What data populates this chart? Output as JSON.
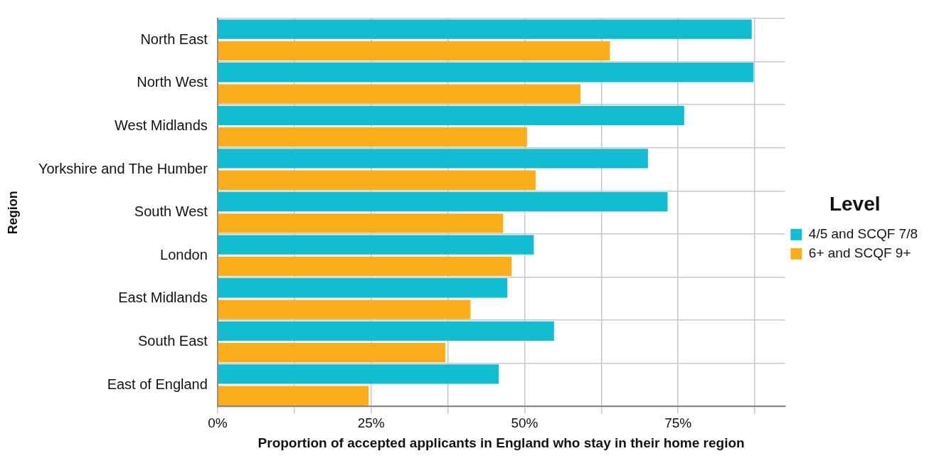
{
  "chart_data": {
    "type": "bar",
    "orientation": "horizontal",
    "xlabel": "Proportion of accepted applicants in England who stay in their home region",
    "ylabel": "Region",
    "legend_title": "Level",
    "categories": [
      "North East",
      "North West",
      "West Midlands",
      "Yorkshire and The Humber",
      "South West",
      "London",
      "East Midlands",
      "South East",
      "East of England"
    ],
    "series": [
      {
        "name": "4/5 and SCQF 7/8",
        "color": "#12bdd1",
        "values": [
          87.0,
          87.3,
          76.0,
          70.1,
          73.3,
          51.5,
          47.2,
          54.8,
          45.8
        ]
      },
      {
        "name": "6+ and SCQF 9+",
        "color": "#fbae1b",
        "values": [
          63.9,
          59.1,
          50.4,
          51.8,
          46.5,
          47.9,
          41.2,
          37.1,
          24.6
        ]
      }
    ],
    "xlim": [
      0,
      92.4
    ],
    "xticks": [
      {
        "value": 0,
        "label": "0%"
      },
      {
        "value": 12.5,
        "label": null
      },
      {
        "value": 25,
        "label": "25%"
      },
      {
        "value": 37.5,
        "label": null
      },
      {
        "value": 50,
        "label": "50%"
      },
      {
        "value": 62.5,
        "label": null
      },
      {
        "value": 75,
        "label": "75%"
      },
      {
        "value": 87.5,
        "label": null
      }
    ],
    "grid": true,
    "legend": "right"
  }
}
